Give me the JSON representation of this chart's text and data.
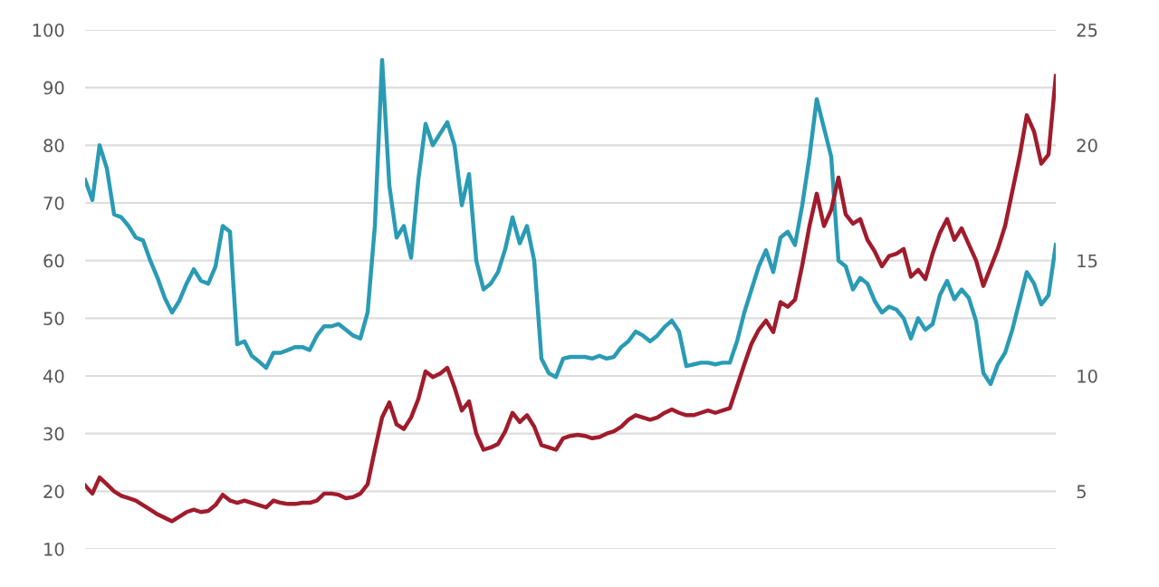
{
  "chart_data": {
    "type": "line",
    "categories": [
      null,
      null,
      null,
      null,
      null,
      null,
      null,
      null,
      null,
      null,
      null,
      null,
      null,
      null,
      null,
      null,
      null,
      null,
      null,
      null,
      null,
      null,
      null,
      null,
      null,
      null,
      null,
      null,
      null,
      null,
      null,
      null,
      null,
      null,
      null,
      null,
      null,
      null,
      null,
      null,
      null,
      null,
      null,
      null,
      null,
      null,
      null,
      null,
      null,
      null,
      null,
      null,
      null,
      null,
      null,
      null,
      null,
      null,
      null,
      null,
      null,
      null,
      null,
      null,
      null,
      null,
      null,
      null,
      null,
      null,
      null,
      null,
      null,
      null,
      null,
      null,
      null,
      null,
      null,
      null,
      null,
      null,
      null,
      null,
      null,
      null,
      null,
      null,
      null,
      null,
      null,
      null,
      null,
      null,
      null,
      null,
      null,
      null,
      null,
      null,
      null,
      null,
      null,
      null,
      null,
      null,
      null,
      null,
      null,
      null,
      null,
      null,
      null,
      null,
      null,
      null,
      null,
      null,
      null,
      null,
      null,
      null,
      null,
      null,
      null,
      null,
      null,
      null,
      null,
      null,
      null,
      null,
      null,
      null,
      null
    ],
    "series": [
      {
        "color": "#2a9bb5",
        "axis": "y",
        "values": [
          74,
          70.5,
          80,
          76,
          68,
          67.5,
          66,
          64,
          63.5,
          60,
          57,
          53.5,
          51,
          53,
          56,
          58.5,
          56.5,
          56,
          59,
          66,
          65,
          45.5,
          46,
          43.5,
          42.5,
          41.4,
          44,
          44,
          44.5,
          45,
          45,
          44.5,
          47,
          48.6,
          48.6,
          49,
          48,
          47,
          46.5,
          51,
          66,
          94.8,
          73,
          64,
          66,
          60.5,
          74,
          83.7,
          80,
          82,
          84,
          80,
          69.6,
          75,
          60,
          55,
          56,
          58,
          62,
          67.5,
          63,
          66,
          60,
          43,
          40.5,
          39.8,
          43,
          43.3,
          43.3,
          43.3,
          43,
          43.5,
          43,
          43.3,
          45,
          46,
          47.7,
          47,
          46,
          47,
          48.5,
          49.6,
          47.7,
          41.7,
          42,
          42.3,
          42.3,
          42,
          42.3,
          42.3,
          46,
          51,
          55,
          59,
          61.8,
          58,
          64,
          65,
          62.7,
          69.6,
          78,
          88,
          83,
          78,
          60,
          59,
          55,
          57,
          56,
          53,
          51,
          52,
          51.5,
          50,
          46.5,
          50,
          48,
          49,
          54,
          56.5,
          53.3,
          55,
          53.5,
          49.5,
          40.5,
          38.6,
          42,
          44,
          48,
          53,
          58,
          56,
          52.4,
          54,
          62.7
        ]
      },
      {
        "color": "#a01c2c",
        "axis": "y2",
        "values": [
          5.25,
          4.9,
          5.6,
          5.3,
          5.0,
          4.8,
          4.7,
          4.6,
          4.4,
          4.2,
          4.0,
          3.85,
          3.7,
          3.9,
          4.1,
          4.2,
          4.1,
          4.15,
          4.4,
          4.85,
          4.6,
          4.5,
          4.6,
          4.5,
          4.4,
          4.3,
          4.6,
          4.5,
          4.45,
          4.45,
          4.5,
          4.5,
          4.6,
          4.9,
          4.9,
          4.85,
          4.7,
          4.75,
          4.9,
          5.3,
          6.8,
          8.2,
          8.85,
          7.9,
          7.7,
          8.2,
          9.0,
          10.2,
          9.95,
          10.1,
          10.35,
          9.5,
          8.5,
          8.9,
          7.5,
          6.8,
          6.9,
          7.05,
          7.6,
          8.4,
          8.0,
          8.3,
          7.8,
          7.0,
          6.9,
          6.8,
          7.3,
          7.4,
          7.45,
          7.4,
          7.3,
          7.35,
          7.5,
          7.6,
          7.8,
          8.1,
          8.3,
          8.2,
          8.1,
          8.2,
          8.4,
          8.55,
          8.4,
          8.3,
          8.3,
          8.4,
          8.5,
          8.4,
          8.5,
          8.6,
          9.55,
          10.5,
          11.4,
          12.0,
          12.4,
          11.9,
          13.2,
          13.0,
          13.3,
          14.8,
          16.5,
          17.9,
          16.5,
          17.2,
          18.6,
          17.0,
          16.6,
          16.8,
          15.9,
          15.4,
          14.75,
          15.2,
          15.3,
          15.5,
          14.3,
          14.6,
          14.2,
          15.3,
          16.2,
          16.8,
          15.9,
          16.4,
          15.7,
          15.0,
          13.9,
          14.7,
          15.5,
          16.5,
          18.0,
          19.5,
          21.3,
          20.6,
          19.2,
          19.6,
          23
        ]
      }
    ],
    "ylim": [
      10,
      100
    ],
    "yticks": [
      10,
      20,
      30,
      40,
      50,
      60,
      70,
      80,
      90,
      100
    ],
    "y2lim": [
      2.5,
      25
    ],
    "y2ticks": [
      5,
      10,
      15,
      20,
      25
    ],
    "grid": "y",
    "tick_labels": "y",
    "marker": "none",
    "line_style": "solid"
  }
}
